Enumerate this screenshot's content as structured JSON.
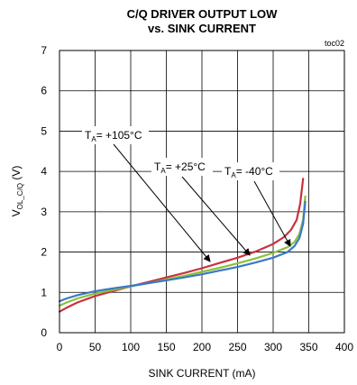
{
  "chart_data": {
    "type": "line",
    "title_line1": "C/Q DRIVER OUTPUT LOW",
    "title_line2": "vs. SINK CURRENT",
    "figure_id": "toc02",
    "xlabel": "SINK CURRENT (mA)",
    "ylabel_main": "V",
    "ylabel_sub": "OL_C/Q",
    "ylabel_unit": " (V)",
    "xlim": [
      0,
      400
    ],
    "ylim": [
      0,
      7
    ],
    "x_ticks": [
      "0",
      "50",
      "100",
      "150",
      "200",
      "250",
      "300",
      "350",
      "400"
    ],
    "y_ticks": [
      "0",
      "1",
      "2",
      "3",
      "4",
      "5",
      "6",
      "7"
    ],
    "grid": true,
    "series": [
      {
        "color": "#c8323c",
        "x": [
          0,
          10,
          25,
          50,
          75,
          100,
          125,
          150,
          175,
          200,
          225,
          250,
          275,
          300,
          315,
          325,
          333,
          338,
          342
        ],
        "y": [
          0.52,
          0.62,
          0.75,
          0.91,
          1.03,
          1.15,
          1.26,
          1.37,
          1.48,
          1.6,
          1.73,
          1.86,
          2.01,
          2.2,
          2.37,
          2.55,
          2.8,
          3.2,
          3.82
        ]
      },
      {
        "color": "#8cbf3a",
        "x": [
          0,
          10,
          25,
          50,
          75,
          100,
          125,
          150,
          175,
          200,
          225,
          250,
          275,
          300,
          320,
          330,
          337,
          342,
          345
        ],
        "y": [
          0.67,
          0.75,
          0.85,
          0.97,
          1.06,
          1.15,
          1.23,
          1.32,
          1.41,
          1.51,
          1.61,
          1.72,
          1.84,
          1.98,
          2.12,
          2.25,
          2.45,
          2.8,
          3.38
        ]
      },
      {
        "color": "#3a78c8",
        "x": [
          0,
          10,
          25,
          50,
          75,
          100,
          125,
          150,
          175,
          200,
          225,
          250,
          275,
          300,
          320,
          330,
          337,
          342,
          345
        ],
        "y": [
          0.78,
          0.85,
          0.93,
          1.03,
          1.1,
          1.16,
          1.23,
          1.3,
          1.37,
          1.45,
          1.54,
          1.63,
          1.74,
          1.86,
          2.0,
          2.15,
          2.35,
          2.7,
          3.25
        ]
      }
    ],
    "annotations": [
      {
        "main": "T",
        "sub": "A",
        "rest": "= +105°C",
        "series": 0
      },
      {
        "main": "T",
        "sub": "A",
        "rest": "= +25°C",
        "series": 1
      },
      {
        "main": "T",
        "sub": "A",
        "rest": "= -40°C",
        "series": 2
      }
    ]
  }
}
